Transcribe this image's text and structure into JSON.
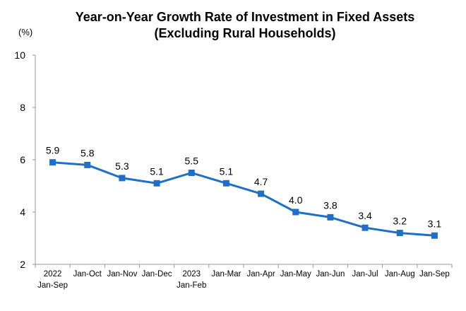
{
  "chart_data": {
    "type": "line",
    "title": "Year-on-Year Growth Rate of Investment in Fixed Assets",
    "subtitle": "(Excluding Rural Households)",
    "ylabel": "(%)",
    "xlabel": "",
    "categories": [
      [
        "2022",
        "Jan-Sep"
      ],
      [
        "Jan-Oct"
      ],
      [
        "Jan-Nov"
      ],
      [
        "Jan-Dec"
      ],
      [
        "2023",
        "Jan-Feb"
      ],
      [
        "Jan-Mar"
      ],
      [
        "Jan-Apr"
      ],
      [
        "Jan-May"
      ],
      [
        "Jan-Jun"
      ],
      [
        "Jan-Jul"
      ],
      [
        "Jan-Aug"
      ],
      [
        "Jan-Sep"
      ]
    ],
    "series": [
      {
        "values": [
          5.9,
          5.8,
          5.3,
          5.1,
          5.5,
          5.1,
          4.7,
          4.0,
          3.8,
          3.4,
          3.2,
          3.1
        ],
        "labels": [
          "5.9",
          "5.8",
          "5.3",
          "5.1",
          "5.5",
          "5.1",
          "4.7",
          "4.0",
          "3.8",
          "3.4",
          "3.2",
          "3.1"
        ]
      }
    ],
    "ylim": [
      2,
      10
    ],
    "yticks": [
      2,
      4,
      6,
      8,
      10
    ],
    "grid": false,
    "line_color": "#1f6fc8",
    "marker": "square"
  }
}
